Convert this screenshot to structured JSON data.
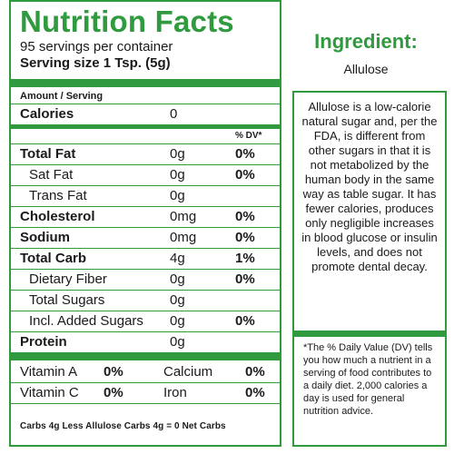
{
  "facts": {
    "title": "Nutrition Facts",
    "servings": "95 servings per container",
    "serving_size": "Serving size 1 Tsp. (5g)",
    "amount_per_serving": "Amount / Serving",
    "dv_header": "% DV*",
    "calories": {
      "label": "Calories",
      "amount": "0"
    },
    "rows": [
      {
        "label": "Total Fat",
        "amount": "0g",
        "dv": "0%"
      },
      {
        "label": "Sat Fat",
        "amount": "0g",
        "dv": "0%"
      },
      {
        "label": "Trans Fat",
        "amount": "0g",
        "dv": ""
      },
      {
        "label": "Cholesterol",
        "amount": "0mg",
        "dv": "0%"
      },
      {
        "label": "Sodium",
        "amount": "0mg",
        "dv": "0%"
      },
      {
        "label": "Total Carb",
        "amount": "4g",
        "dv": "1%"
      },
      {
        "label": "Dietary Fiber",
        "amount": "0g",
        "dv": "0%"
      },
      {
        "label": "Total Sugars",
        "amount": "0g",
        "dv": ""
      },
      {
        "label": "Incl. Added Sugars",
        "amount": "0g",
        "dv": "0%"
      },
      {
        "label": "Protein",
        "amount": "0g",
        "dv": ""
      }
    ],
    "vitamins": [
      {
        "name1": "Vitamin A",
        "val1": "0%",
        "name2": "Calcium",
        "val2": "0%"
      },
      {
        "name1": "Vitamin C",
        "val1": "0%",
        "name2": "Iron",
        "val2": "0%"
      }
    ],
    "net_carbs": "Carbs 4g Less Allulose Carbs 4g = 0 Net Carbs"
  },
  "ingredient": {
    "title": "Ingredient:",
    "value": "Allulose",
    "description": "Allulose is a low-calorie natural sugar and, per the FDA, is different from other sugars in that it is not metabolized by the human body in the same way as table sugar. It has fewer calories, produces only negligible increases in blood glucose or insulin levels, and does not promote dental decay.",
    "dv_note": "*The % Daily Value (DV) tells you how much a nutrient in a serving of food contributes to a daily diet. 2,000 calories a day is used for general nutrition advice."
  },
  "colors": {
    "accent": "#2f9a3e",
    "text": "#1a1a1a"
  }
}
